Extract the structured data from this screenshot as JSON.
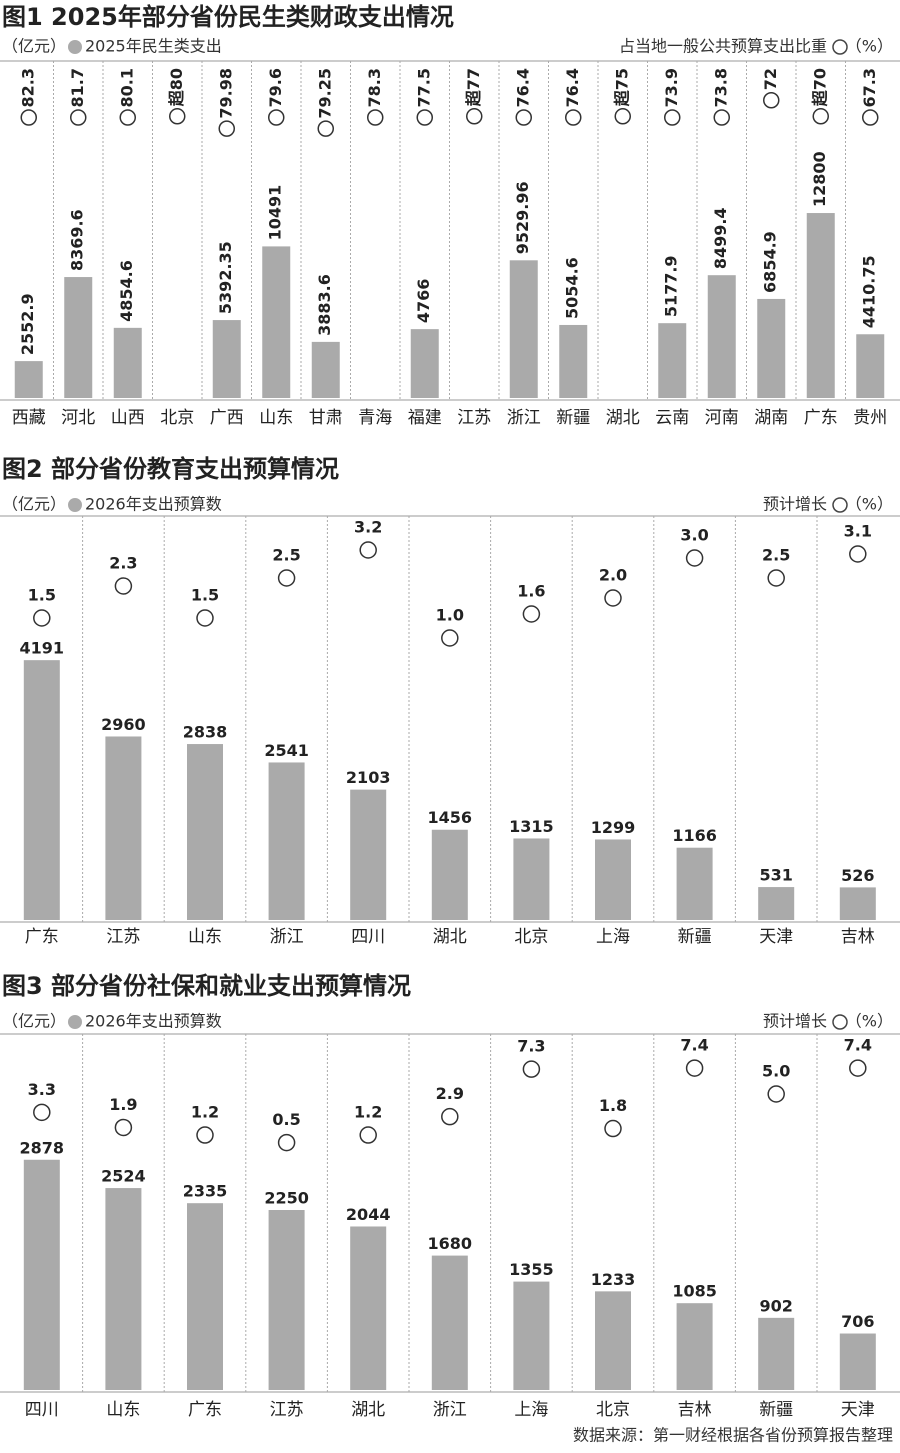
{
  "chart_data": [
    {
      "type": "bar",
      "title": "图1 2025年部分省份民生类财政支出情况",
      "y_unit": "（亿元）",
      "y2_unit": "（%）",
      "label_style": "vertical",
      "categories": [
        "西藏",
        "河北",
        "山西",
        "北京",
        "广西",
        "山东",
        "甘肃",
        "青海",
        "福建",
        "江苏",
        "浙江",
        "新疆",
        "湖北",
        "云南",
        "河南",
        "湖南",
        "广东",
        "贵州"
      ],
      "series": [
        {
          "name": "2025年民生类支出",
          "color": "#aaaaaa",
          "values": [
            2552.9,
            8369.6,
            4854.6,
            null,
            5392.35,
            10491,
            3883.6,
            null,
            4766,
            null,
            9529.96,
            5054.6,
            null,
            5177.9,
            8499.4,
            6854.9,
            12800,
            4410.75
          ]
        },
        {
          "name": "占当地一般公共预算支出比重",
          "marker": "circle",
          "axis": "y2",
          "values": [
            82.3,
            81.7,
            80.1,
            80,
            79.98,
            79.6,
            79.25,
            78.3,
            77.5,
            77,
            76.4,
            76.4,
            75,
            73.9,
            73.8,
            72,
            70,
            67.3
          ],
          "value_labels": [
            "82.3",
            "81.7",
            "80.1",
            "超80",
            "79.98",
            "79.6",
            "79.25",
            "78.3",
            "77.5",
            "超77",
            "76.4",
            "76.4",
            "超75",
            "73.9",
            "73.8",
            "72",
            "超70",
            "67.3"
          ]
        }
      ]
    },
    {
      "type": "bar",
      "title": "图2 部分省份教育支出预算情况",
      "y_unit": "（亿元）",
      "y2_unit": "（%）",
      "label_style": "horizontal",
      "categories": [
        "广东",
        "江苏",
        "山东",
        "浙江",
        "四川",
        "湖北",
        "北京",
        "上海",
        "新疆",
        "天津",
        "吉林"
      ],
      "series": [
        {
          "name": "2026年支出预算数",
          "color": "#aaaaaa",
          "values": [
            4191,
            2960,
            2838,
            2541,
            2103,
            1456,
            1315,
            1299,
            1166,
            531,
            526
          ]
        },
        {
          "name": "预计增长",
          "marker": "circle",
          "axis": "y2",
          "values": [
            1.5,
            2.3,
            1.5,
            2.5,
            3.2,
            1.0,
            1.6,
            2.0,
            3.0,
            2.5,
            3.1
          ],
          "value_labels": [
            "1.5",
            "2.3",
            "1.5",
            "2.5",
            "3.2",
            "1.0",
            "1.6",
            "2.0",
            "3.0",
            "2.5",
            "3.1"
          ]
        }
      ]
    },
    {
      "type": "bar",
      "title": "图3 部分省份社保和就业支出预算情况",
      "y_unit": "（亿元）",
      "y2_unit": "（%）",
      "label_style": "horizontal",
      "categories": [
        "四川",
        "山东",
        "广东",
        "江苏",
        "湖北",
        "浙江",
        "上海",
        "北京",
        "吉林",
        "新疆",
        "天津"
      ],
      "series": [
        {
          "name": "2026年支出预算数",
          "color": "#aaaaaa",
          "values": [
            2878,
            2524,
            2335,
            2250,
            2044,
            1680,
            1355,
            1233,
            1085,
            902,
            706
          ]
        },
        {
          "name": "预计增长",
          "marker": "circle",
          "axis": "y2",
          "values": [
            3.3,
            1.9,
            1.2,
            0.5,
            1.2,
            2.9,
            7.3,
            1.8,
            7.4,
            5.0,
            7.4
          ],
          "value_labels": [
            "3.3",
            "1.9",
            "1.2",
            "0.5",
            "1.2",
            "2.9",
            "7.3",
            "1.8",
            "7.4",
            "5.0",
            "7.4"
          ]
        }
      ]
    }
  ],
  "source": "数据来源：第一财经根据各省份预算报告整理"
}
